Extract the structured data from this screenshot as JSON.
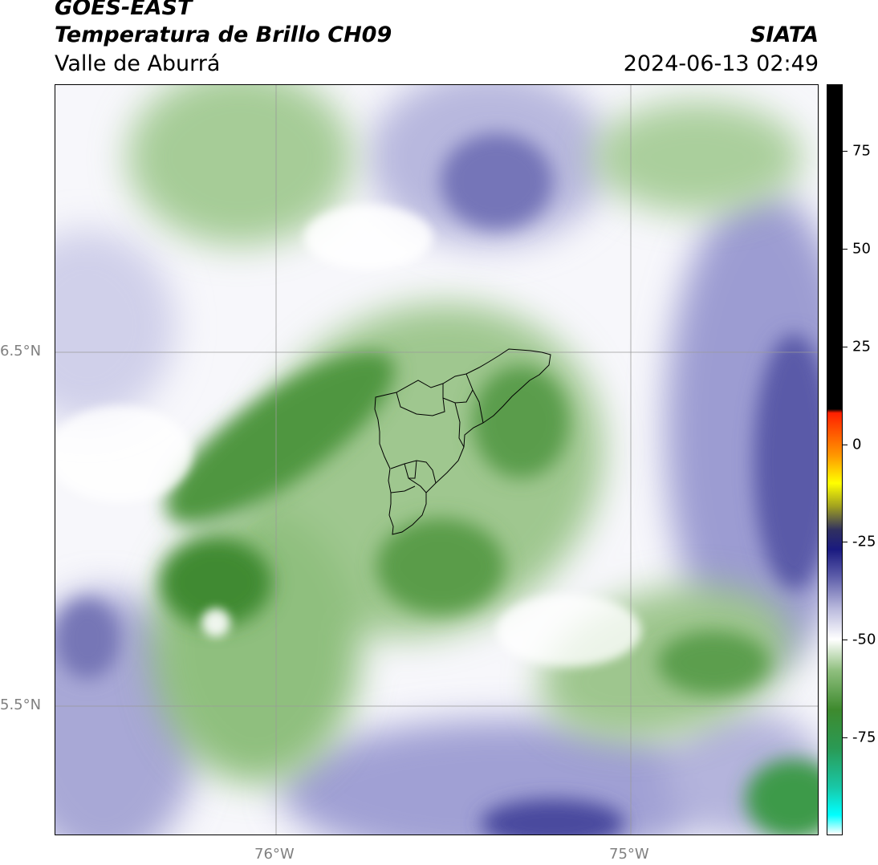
{
  "header": {
    "satellite": "GOES-EAST",
    "product": "Temperatura de Brillo CH09",
    "region": "Valle de Aburrá",
    "agency": "SIATA",
    "datetime": "2024-06-13 02:49"
  },
  "map": {
    "lat_labels": [
      "6.5°N",
      "5.5°N"
    ],
    "lon_labels": [
      "76°W",
      "75°W"
    ],
    "lat_range": [
      5.14,
      7.26
    ],
    "lon_range": [
      -76.62,
      -74.47
    ],
    "gridline_color": "#9a9a9a"
  },
  "colorbar": {
    "tick_labels": [
      "75",
      "50",
      "25",
      "0",
      "-25",
      "-50",
      "-75"
    ],
    "tick_values": [
      75,
      50,
      25,
      0,
      -25,
      -50,
      -75
    ],
    "range": [
      -100,
      92
    ],
    "stops": [
      {
        "v": -100,
        "color": "#ffffff"
      },
      {
        "v": -95,
        "color": "#00ffff"
      },
      {
        "v": -88,
        "color": "#18c8a8"
      },
      {
        "v": -78,
        "color": "#2a9a55"
      },
      {
        "v": -68,
        "color": "#3e8a2e"
      },
      {
        "v": -58,
        "color": "#8fbf7e"
      },
      {
        "v": -50,
        "color": "#ffffff"
      },
      {
        "v": -42,
        "color": "#b8b8dc"
      },
      {
        "v": -34,
        "color": "#5e5eaa"
      },
      {
        "v": -27,
        "color": "#1a1a80"
      },
      {
        "v": -22,
        "color": "#303060"
      },
      {
        "v": -16,
        "color": "#a0a020"
      },
      {
        "v": -10,
        "color": "#ffff00"
      },
      {
        "v": -3,
        "color": "#ff9900"
      },
      {
        "v": 8,
        "color": "#ff2000"
      },
      {
        "v": 9,
        "color": "#000000"
      },
      {
        "v": 92,
        "color": "#000000"
      }
    ]
  },
  "colors": {
    "green_dark": "#3f8a30",
    "green_mid": "#7fb56e",
    "green_light": "#cfe3c7",
    "purple_light": "#d4d4ea",
    "purple_mid": "#9a9ad0",
    "purple_dark": "#4a4a9e",
    "boundary": "#000000"
  }
}
